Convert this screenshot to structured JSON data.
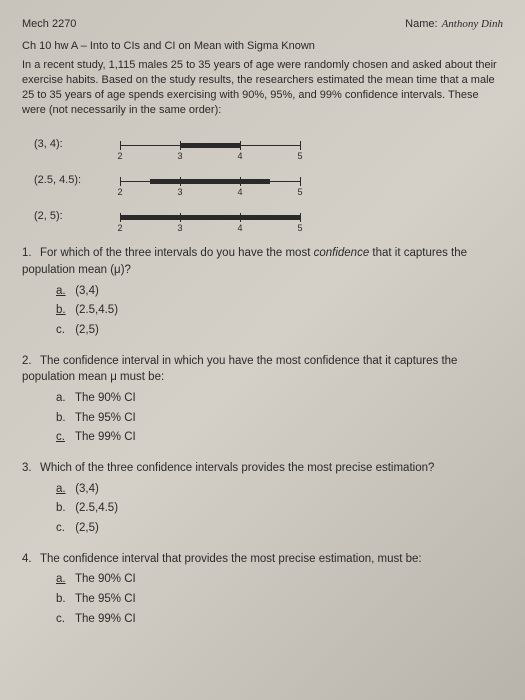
{
  "header": {
    "course": "Mech 2270",
    "name_label": "Name:",
    "name_value": "Anthony Dinh"
  },
  "title": "Ch 10 hw A – Into to CIs and CI on Mean with Sigma Known",
  "intro": "In a recent study, 1,115 males 25 to 35 years of age were randomly chosen and asked about their exercise habits. Based on the study results, the researchers estimated the mean time that a male 25 to 35 years of age spends exercising with 90%, 95%, and 99% confidence intervals. These were (not necessarily in the same order):",
  "intervals": {
    "axis_min": 2,
    "axis_max": 5,
    "ticks": [
      2,
      3,
      4,
      5
    ],
    "rows": [
      {
        "label": "(3, 4):",
        "lo": 3,
        "hi": 4
      },
      {
        "label": "(2.5, 4.5):",
        "lo": 2.5,
        "hi": 4.5
      },
      {
        "label": "(2, 5):",
        "lo": 2,
        "hi": 5
      }
    ]
  },
  "questions": [
    {
      "num": "1.",
      "text_pre": "For which of the three intervals do you have the most ",
      "text_em": "confidence",
      "text_post": " that it captures the population mean (μ)?",
      "options": [
        {
          "letter": "a.",
          "text": "(3,4)",
          "ul_letter": true
        },
        {
          "letter": "b.",
          "text": "(2.5,4.5)",
          "ul_letter": true
        },
        {
          "letter": "c.",
          "text": "(2,5)"
        }
      ]
    },
    {
      "num": "2.",
      "text_pre": "The confidence interval in which you have the most confidence that it captures the population mean μ must be:",
      "options": [
        {
          "letter": "a.",
          "text": "The 90% CI"
        },
        {
          "letter": "b.",
          "text": "The 95% CI"
        },
        {
          "letter": "c.",
          "text": "The 99% CI",
          "ul_letter": true
        }
      ]
    },
    {
      "num": "3.",
      "text_pre": "Which of the three confidence intervals provides the most precise estimation?",
      "options": [
        {
          "letter": "a.",
          "text": "(3,4)",
          "ul_letter": true
        },
        {
          "letter": "b.",
          "text": "(2.5,4.5)"
        },
        {
          "letter": "c.",
          "text": "(2,5)"
        }
      ]
    },
    {
      "num": "4.",
      "text_pre": "The confidence interval that provides the most precise estimation, must be:",
      "options": [
        {
          "letter": "a.",
          "text": "The 90% CI",
          "ul_letter": true
        },
        {
          "letter": "b.",
          "text": "The 95% CI"
        },
        {
          "letter": "c.",
          "text": "The 99% CI"
        }
      ]
    }
  ]
}
